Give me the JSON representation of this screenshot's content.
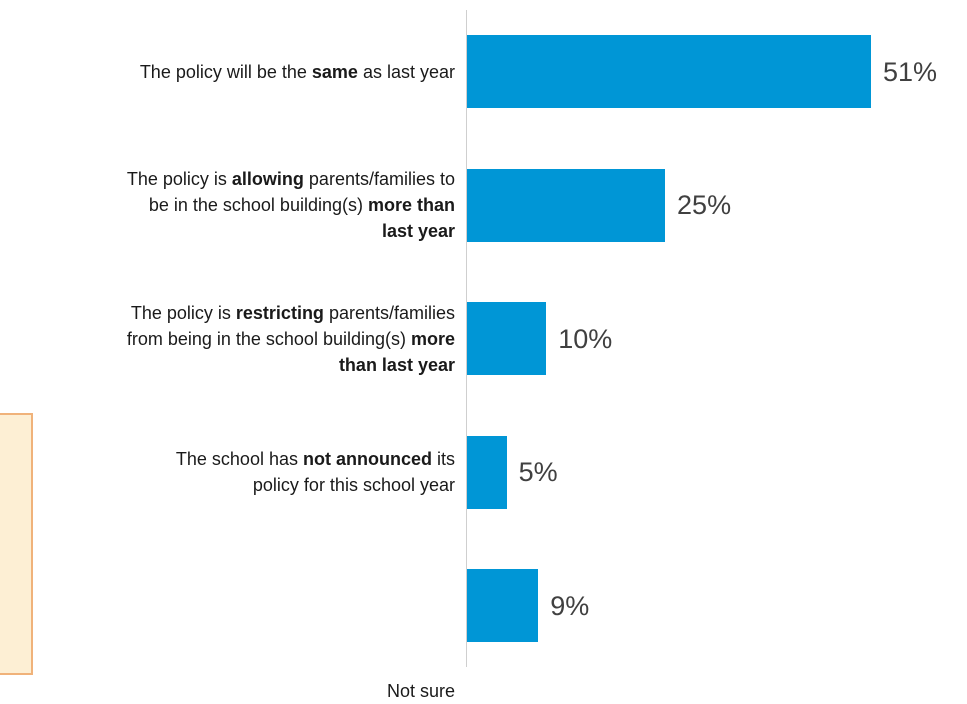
{
  "chart_data": {
    "type": "bar",
    "orientation": "horizontal",
    "xlim": [
      0,
      51
    ],
    "categories": [
      [
        [
          {
            "t": "The policy will be the "
          },
          {
            "t": "same",
            "b": true
          },
          {
            "t": " as last year"
          }
        ]
      ],
      [
        [
          {
            "t": "The policy is "
          },
          {
            "t": "allowing",
            "b": true
          },
          {
            "t": " parents/families to"
          }
        ],
        [
          {
            "t": "be in the school building(s) "
          },
          {
            "t": "more than",
            "b": true
          }
        ],
        [
          {
            "t": "last year",
            "b": true
          }
        ]
      ],
      [
        [
          {
            "t": "The policy is "
          },
          {
            "t": "restricting",
            "b": true
          },
          {
            "t": " parents/families"
          }
        ],
        [
          {
            "t": "from being in the school building(s) "
          },
          {
            "t": "more",
            "b": true
          }
        ],
        [
          {
            "t": "than last year",
            "b": true
          }
        ]
      ],
      [
        [
          {
            "t": "The school has "
          },
          {
            "t": "not announced",
            "b": true
          },
          {
            "t": " its"
          }
        ],
        [
          {
            "t": "policy for this school year"
          }
        ]
      ],
      [
        [
          {
            "t": "Not sure"
          }
        ]
      ]
    ],
    "values": [
      51,
      25,
      10,
      5,
      9
    ],
    "value_labels": [
      "51%",
      "25%",
      "10%",
      "5%",
      "9%"
    ],
    "bar_color": "#0096d6"
  }
}
